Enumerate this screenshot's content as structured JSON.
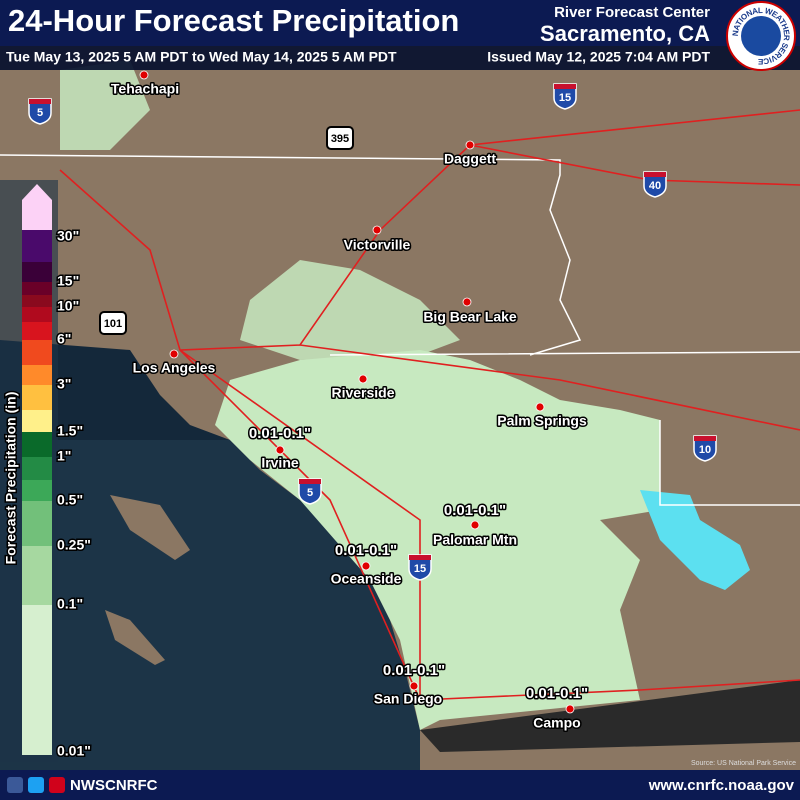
{
  "header": {
    "title": "24-Hour Forecast Precipitation",
    "rfc_label": "River Forecast Center",
    "rfc_location": "Sacramento, CA",
    "valid_period": "Tue May 13, 2025 5 AM PDT to Wed May 14, 2025 5 AM PDT",
    "issued": "Issued May 12, 2025 7:04 AM PDT"
  },
  "logo": {
    "text": "NATIONAL WEATHER SERVICE"
  },
  "legend": {
    "title": "Forecast Precipitation (in)",
    "labels": [
      "30\"",
      "15\"",
      "10\"",
      "6\"",
      "3\"",
      "1.5\"",
      "1\"",
      "0.5\"",
      "0.25\"",
      "0.1\"",
      "0.01\""
    ],
    "colors": [
      "#fcd2f6",
      "#4a0a6b",
      "#3a0038",
      "#6a0028",
      "#8a0a1e",
      "#b00a1e",
      "#d8141e",
      "#f04a1e",
      "#ff8a2a",
      "#ffc040",
      "#fff08a",
      "#0a6a2a",
      "#238b45",
      "#3ca858",
      "#72c07a",
      "#a6d8a0",
      "#d6efcf"
    ]
  },
  "map": {
    "cities": [
      "Tehachapi",
      "Daggett",
      "Victorville",
      "Big Bear Lake",
      "Los Angeles",
      "Riverside",
      "Palm Springs",
      "Irvine",
      "Palomar Mtn",
      "Oceanside",
      "San Diego",
      "Campo"
    ],
    "amount_labels": [
      "0.01-0.1\"",
      "0.01-0.1\"",
      "0.01-0.1\"",
      "0.01-0.1\"",
      "0.01-0.1\""
    ],
    "interstates": [
      "5",
      "15",
      "40",
      "10",
      "5",
      "15"
    ],
    "us_routes": [
      "395",
      "101"
    ],
    "source": "Source: US National Park Service"
  },
  "footer": {
    "social": "NWSCNRFC",
    "url": "www.cnrfc.noaa.gov"
  }
}
